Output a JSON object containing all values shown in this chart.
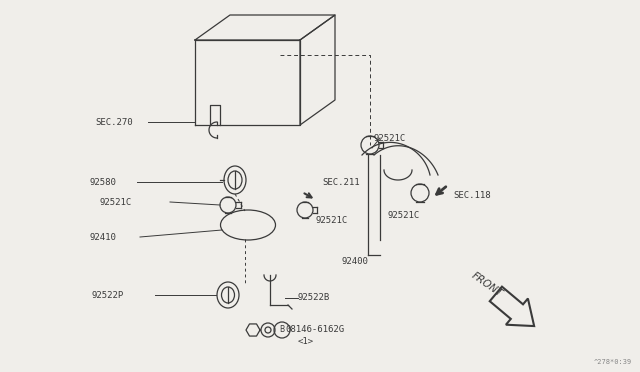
{
  "bg_color": "#f0eeea",
  "line_color": "#3a3a3a",
  "label_color": "#3a3a3a",
  "watermark": "^278*0:39",
  "parts": {
    "SEC270": "SEC.270",
    "part92580": "92580",
    "part92521C_top": "92521C",
    "SEC211": "SEC.211",
    "part92521C_left": "92521C",
    "part92521C_mid": "92521C",
    "part92410": "92410",
    "part92400": "92400",
    "SEC118": "SEC.118",
    "part92521C_right": "92521C",
    "part92522P": "92522P",
    "part92522B": "92522B",
    "bolt": "08146-6162G",
    "bolt_num": "<1>",
    "FRONT": "FRONT"
  }
}
